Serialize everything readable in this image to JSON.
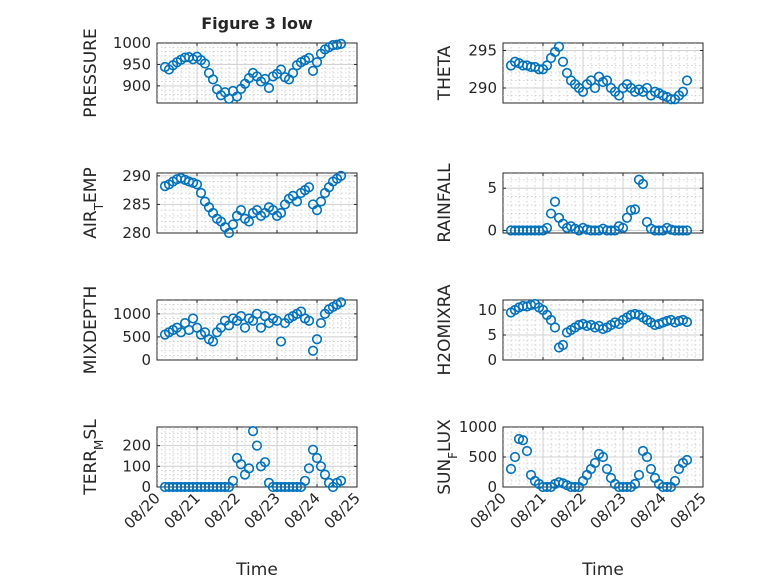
{
  "figure": {
    "title": "Figure 3 low",
    "xlabel": "Time",
    "xticks": [
      "08/20",
      "08/21",
      "08/22",
      "08/23",
      "08/24",
      "08/25"
    ],
    "marker_color": "#0072bd"
  },
  "chart_data": [
    {
      "type": "scatter",
      "id": "pressure",
      "ylabel": "PRESSURE",
      "ylim": [
        860,
        1000
      ],
      "yticks": [
        900,
        950,
        1000
      ],
      "x": [
        20.2,
        20.3,
        20.4,
        20.5,
        20.6,
        20.7,
        20.8,
        20.9,
        21.0,
        21.1,
        21.2,
        21.3,
        21.4,
        21.5,
        21.6,
        21.7,
        21.8,
        21.9,
        22.0,
        22.1,
        22.2,
        22.3,
        22.4,
        22.5,
        22.6,
        22.7,
        22.8,
        22.9,
        23.0,
        23.1,
        23.2,
        23.3,
        23.4,
        23.5,
        23.6,
        23.7,
        23.8,
        23.9,
        24.0,
        24.1,
        24.2,
        24.3,
        24.4,
        24.5,
        24.6
      ],
      "y": [
        944,
        938,
        948,
        955,
        961,
        966,
        967,
        962,
        968,
        960,
        952,
        930,
        915,
        892,
        878,
        885,
        870,
        888,
        875,
        893,
        905,
        918,
        930,
        922,
        910,
        916,
        895,
        922,
        928,
        938,
        920,
        915,
        930,
        948,
        955,
        960,
        965,
        935,
        955,
        975,
        985,
        990,
        995,
        996,
        998
      ]
    },
    {
      "type": "scatter",
      "id": "theta",
      "ylabel": "THETA",
      "ylim": [
        288,
        296
      ],
      "yticks": [
        290,
        295
      ],
      "x": [
        20.2,
        20.3,
        20.4,
        20.5,
        20.6,
        20.7,
        20.8,
        20.9,
        21.0,
        21.1,
        21.2,
        21.3,
        21.4,
        21.5,
        21.6,
        21.7,
        21.8,
        21.9,
        22.0,
        22.1,
        22.2,
        22.3,
        22.4,
        22.5,
        22.6,
        22.7,
        22.8,
        22.9,
        23.0,
        23.1,
        23.2,
        23.3,
        23.4,
        23.5,
        23.6,
        23.7,
        23.8,
        23.9,
        24.0,
        24.1,
        24.2,
        24.3,
        24.4,
        24.5,
        24.6
      ],
      "y": [
        293,
        293.5,
        293.3,
        293.0,
        293.0,
        292.8,
        292.8,
        292.5,
        292.5,
        293.0,
        294.0,
        294.8,
        295.5,
        293.5,
        292.0,
        291.0,
        290.5,
        290.0,
        289.5,
        290.5,
        291.0,
        290.0,
        291.5,
        290.8,
        291.0,
        290.0,
        289.5,
        289.0,
        290.0,
        290.5,
        290.0,
        289.5,
        289.8,
        289.5,
        290.0,
        289.0,
        289.5,
        289.3,
        289.0,
        288.8,
        288.5,
        288.5,
        289.0,
        289.5,
        291.0
      ]
    },
    {
      "type": "scatter",
      "id": "air_temp",
      "ylabel": "AIR_TEMP",
      "ylim": [
        280,
        290.5
      ],
      "yticks": [
        280,
        285,
        290
      ],
      "x": [
        20.2,
        20.3,
        20.4,
        20.5,
        20.6,
        20.7,
        20.8,
        20.9,
        21.0,
        21.1,
        21.2,
        21.3,
        21.4,
        21.5,
        21.6,
        21.7,
        21.8,
        21.9,
        22.0,
        22.1,
        22.2,
        22.3,
        22.4,
        22.5,
        22.6,
        22.7,
        22.8,
        22.9,
        23.0,
        23.1,
        23.2,
        23.3,
        23.4,
        23.5,
        23.6,
        23.7,
        23.8,
        23.9,
        24.0,
        24.1,
        24.2,
        24.3,
        24.4,
        24.5,
        24.6
      ],
      "y": [
        288.2,
        288.5,
        289.0,
        289.4,
        289.6,
        289.3,
        289.0,
        288.8,
        288.5,
        287.0,
        285.5,
        284.5,
        283.5,
        282.5,
        282.0,
        281.0,
        280.0,
        281.5,
        283.0,
        284.0,
        282.5,
        282.0,
        283.5,
        284.0,
        283.0,
        283.5,
        284.5,
        284.0,
        283.0,
        283.5,
        285.0,
        286.0,
        286.5,
        285.5,
        287.0,
        287.5,
        288.0,
        285.0,
        284.0,
        285.5,
        287.0,
        288.0,
        289.0,
        289.5,
        290.0
      ]
    },
    {
      "type": "scatter",
      "id": "rainfall",
      "ylabel": "RAINFALL",
      "ylim": [
        -0.3,
        6.8
      ],
      "yticks": [
        0,
        5
      ],
      "x": [
        20.2,
        20.3,
        20.4,
        20.5,
        20.6,
        20.7,
        20.8,
        20.9,
        21.0,
        21.1,
        21.2,
        21.3,
        21.4,
        21.5,
        21.6,
        21.7,
        21.8,
        21.9,
        22.0,
        22.1,
        22.2,
        22.3,
        22.4,
        22.5,
        22.6,
        22.7,
        22.8,
        22.9,
        23.0,
        23.1,
        23.2,
        23.3,
        23.4,
        23.5,
        23.6,
        23.7,
        23.8,
        23.9,
        24.0,
        24.1,
        24.2,
        24.3,
        24.4,
        24.5,
        24.6
      ],
      "y": [
        0,
        0,
        0,
        0,
        0,
        0,
        0,
        0,
        0,
        0.3,
        2.0,
        3.4,
        1.5,
        0.8,
        0.3,
        0.5,
        0.2,
        0,
        0.3,
        0.1,
        0,
        0,
        0,
        0.2,
        0,
        0,
        0,
        0.5,
        0.3,
        1.5,
        2.4,
        2.5,
        6.0,
        5.5,
        1.0,
        0.2,
        0,
        0,
        0,
        0.3,
        0.1,
        0,
        0,
        0,
        0
      ]
    },
    {
      "type": "scatter",
      "id": "mixdepth",
      "ylabel": "MIXDEPTH",
      "ylim": [
        0,
        1300
      ],
      "yticks": [
        0,
        500,
        1000
      ],
      "x": [
        20.2,
        20.3,
        20.4,
        20.5,
        20.6,
        20.7,
        20.8,
        20.9,
        21.0,
        21.1,
        21.2,
        21.3,
        21.4,
        21.5,
        21.6,
        21.7,
        21.8,
        21.9,
        22.0,
        22.1,
        22.2,
        22.3,
        22.4,
        22.5,
        22.6,
        22.7,
        22.8,
        22.9,
        23.0,
        23.1,
        23.2,
        23.3,
        23.4,
        23.5,
        23.6,
        23.7,
        23.8,
        23.9,
        24.0,
        24.1,
        24.2,
        24.3,
        24.4,
        24.5,
        24.6
      ],
      "y": [
        550,
        600,
        650,
        700,
        600,
        800,
        650,
        900,
        700,
        550,
        600,
        450,
        400,
        600,
        700,
        850,
        750,
        900,
        850,
        950,
        700,
        900,
        850,
        1000,
        700,
        950,
        800,
        900,
        850,
        400,
        800,
        900,
        950,
        1000,
        1050,
        900,
        850,
        200,
        450,
        800,
        1000,
        1100,
        1150,
        1200,
        1250
      ]
    },
    {
      "type": "scatter",
      "id": "h2omixra",
      "ylabel": "H2OMIXRA",
      "ylim": [
        0,
        12
      ],
      "yticks": [
        0,
        5,
        10
      ],
      "x": [
        20.2,
        20.3,
        20.4,
        20.5,
        20.6,
        20.7,
        20.8,
        20.9,
        21.0,
        21.1,
        21.2,
        21.3,
        21.4,
        21.5,
        21.6,
        21.7,
        21.8,
        21.9,
        22.0,
        22.1,
        22.2,
        22.3,
        22.4,
        22.5,
        22.6,
        22.7,
        22.8,
        22.9,
        23.0,
        23.1,
        23.2,
        23.3,
        23.4,
        23.5,
        23.6,
        23.7,
        23.8,
        23.9,
        24.0,
        24.1,
        24.2,
        24.3,
        24.4,
        24.5,
        24.6
      ],
      "y": [
        9.5,
        10.0,
        10.5,
        10.8,
        10.7,
        11.0,
        11.2,
        10.5,
        10.0,
        9.0,
        8.0,
        6.5,
        2.5,
        3.0,
        5.5,
        6.0,
        6.5,
        7.0,
        7.2,
        6.8,
        7.0,
        6.5,
        6.8,
        6.2,
        6.5,
        7.0,
        7.5,
        7.2,
        8.0,
        8.5,
        9.0,
        9.2,
        9.0,
        8.5,
        8.0,
        7.5,
        7.0,
        7.2,
        7.5,
        7.8,
        8.0,
        7.5,
        7.8,
        8.0,
        7.6
      ]
    },
    {
      "type": "scatter",
      "id": "terr_msl",
      "ylabel": "TERR_MSL",
      "ylim": [
        0,
        290
      ],
      "yticks": [
        0,
        100,
        200
      ],
      "x": [
        20.2,
        20.3,
        20.4,
        20.5,
        20.6,
        20.7,
        20.8,
        20.9,
        21.0,
        21.1,
        21.2,
        21.3,
        21.4,
        21.5,
        21.6,
        21.7,
        21.8,
        21.9,
        22.0,
        22.1,
        22.2,
        22.3,
        22.4,
        22.5,
        22.6,
        22.7,
        22.8,
        22.9,
        23.0,
        23.1,
        23.2,
        23.3,
        23.4,
        23.5,
        23.6,
        23.7,
        23.8,
        23.9,
        24.0,
        24.1,
        24.2,
        24.3,
        24.4,
        24.5,
        24.6
      ],
      "y": [
        0,
        0,
        0,
        0,
        0,
        0,
        0,
        0,
        0,
        0,
        0,
        0,
        0,
        0,
        0,
        0,
        0,
        30,
        140,
        110,
        60,
        90,
        270,
        200,
        100,
        120,
        20,
        0,
        0,
        0,
        0,
        0,
        0,
        0,
        0,
        30,
        90,
        180,
        140,
        100,
        60,
        20,
        0,
        20,
        30
      ]
    },
    {
      "type": "scatter",
      "id": "sun_flux",
      "ylabel": "SUN_FLUX",
      "ylim": [
        0,
        1000
      ],
      "yticks": [
        0,
        500,
        1000
      ],
      "x": [
        20.2,
        20.3,
        20.4,
        20.5,
        20.6,
        20.7,
        20.8,
        20.9,
        21.0,
        21.1,
        21.2,
        21.3,
        21.4,
        21.5,
        21.6,
        21.7,
        21.8,
        21.9,
        22.0,
        22.1,
        22.2,
        22.3,
        22.4,
        22.5,
        22.6,
        22.7,
        22.8,
        22.9,
        23.0,
        23.1,
        23.2,
        23.3,
        23.4,
        23.5,
        23.6,
        23.7,
        23.8,
        23.9,
        24.0,
        24.1,
        24.2,
        24.3,
        24.4,
        24.5,
        24.6
      ],
      "y": [
        300,
        500,
        800,
        780,
        600,
        200,
        100,
        50,
        0,
        0,
        0,
        50,
        80,
        60,
        30,
        0,
        0,
        0,
        100,
        200,
        300,
        400,
        550,
        500,
        300,
        150,
        50,
        0,
        0,
        0,
        0,
        50,
        200,
        600,
        500,
        300,
        150,
        50,
        0,
        0,
        0,
        100,
        300,
        400,
        450
      ]
    }
  ]
}
